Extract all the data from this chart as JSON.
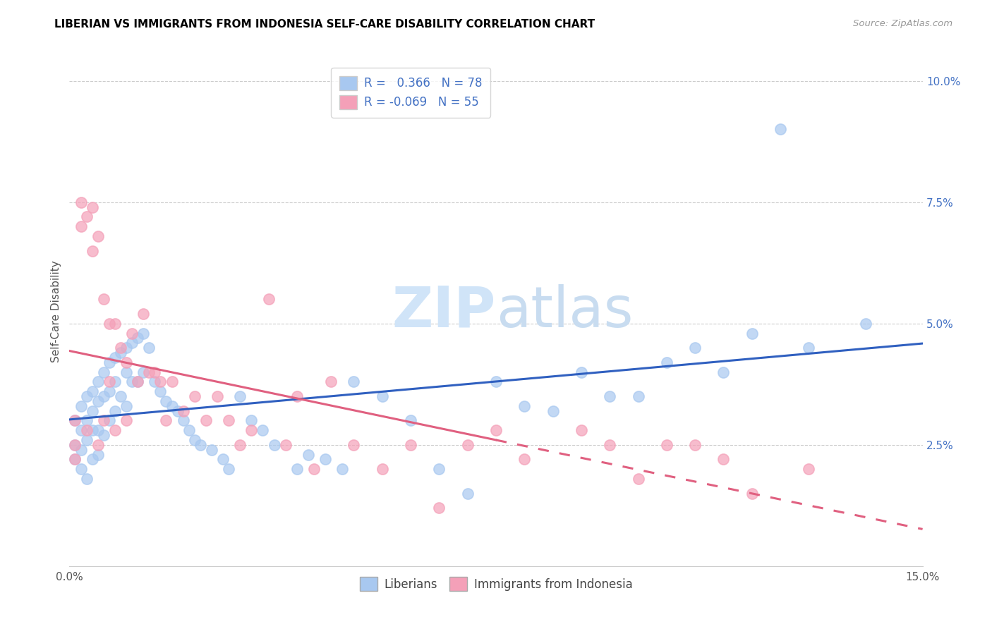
{
  "title": "LIBERIAN VS IMMIGRANTS FROM INDONESIA SELF-CARE DISABILITY CORRELATION CHART",
  "source": "Source: ZipAtlas.com",
  "ylabel": "Self-Care Disability",
  "xlim": [
    0.0,
    0.15
  ],
  "ylim": [
    0.0,
    0.105
  ],
  "R_liberian": 0.366,
  "N_liberian": 78,
  "R_indonesia": -0.069,
  "N_indonesia": 55,
  "blue_dot_color": "#A8C8F0",
  "pink_dot_color": "#F4A0B8",
  "blue_line_color": "#3060C0",
  "pink_line_color": "#E06080",
  "watermark_color": "#D0E4F8",
  "legend_r_color": "#4472C4",
  "liberian_x": [
    0.001,
    0.001,
    0.001,
    0.002,
    0.002,
    0.002,
    0.002,
    0.003,
    0.003,
    0.003,
    0.003,
    0.004,
    0.004,
    0.004,
    0.004,
    0.005,
    0.005,
    0.005,
    0.005,
    0.006,
    0.006,
    0.006,
    0.007,
    0.007,
    0.007,
    0.008,
    0.008,
    0.008,
    0.009,
    0.009,
    0.01,
    0.01,
    0.01,
    0.011,
    0.011,
    0.012,
    0.012,
    0.013,
    0.013,
    0.014,
    0.015,
    0.016,
    0.017,
    0.018,
    0.019,
    0.02,
    0.021,
    0.022,
    0.023,
    0.025,
    0.027,
    0.028,
    0.03,
    0.032,
    0.034,
    0.036,
    0.04,
    0.042,
    0.045,
    0.048,
    0.05,
    0.055,
    0.06,
    0.065,
    0.07,
    0.075,
    0.08,
    0.085,
    0.09,
    0.095,
    0.1,
    0.105,
    0.11,
    0.115,
    0.12,
    0.125,
    0.13,
    0.14
  ],
  "liberian_y": [
    0.03,
    0.025,
    0.022,
    0.033,
    0.028,
    0.024,
    0.02,
    0.035,
    0.03,
    0.026,
    0.018,
    0.036,
    0.032,
    0.028,
    0.022,
    0.038,
    0.034,
    0.028,
    0.023,
    0.04,
    0.035,
    0.027,
    0.042,
    0.036,
    0.03,
    0.043,
    0.038,
    0.032,
    0.044,
    0.035,
    0.045,
    0.04,
    0.033,
    0.046,
    0.038,
    0.047,
    0.038,
    0.048,
    0.04,
    0.045,
    0.038,
    0.036,
    0.034,
    0.033,
    0.032,
    0.03,
    0.028,
    0.026,
    0.025,
    0.024,
    0.022,
    0.02,
    0.035,
    0.03,
    0.028,
    0.025,
    0.02,
    0.023,
    0.022,
    0.02,
    0.038,
    0.035,
    0.03,
    0.02,
    0.015,
    0.038,
    0.033,
    0.032,
    0.04,
    0.035,
    0.035,
    0.042,
    0.045,
    0.04,
    0.048,
    0.09,
    0.045,
    0.05
  ],
  "indonesia_x": [
    0.001,
    0.001,
    0.001,
    0.002,
    0.002,
    0.003,
    0.003,
    0.004,
    0.004,
    0.005,
    0.005,
    0.006,
    0.006,
    0.007,
    0.007,
    0.008,
    0.008,
    0.009,
    0.01,
    0.01,
    0.011,
    0.012,
    0.013,
    0.014,
    0.015,
    0.016,
    0.017,
    0.018,
    0.02,
    0.022,
    0.024,
    0.026,
    0.028,
    0.03,
    0.032,
    0.035,
    0.038,
    0.04,
    0.043,
    0.046,
    0.05,
    0.055,
    0.06,
    0.065,
    0.07,
    0.075,
    0.08,
    0.09,
    0.095,
    0.1,
    0.105,
    0.11,
    0.115,
    0.12,
    0.13
  ],
  "indonesia_y": [
    0.03,
    0.025,
    0.022,
    0.075,
    0.07,
    0.072,
    0.028,
    0.074,
    0.065,
    0.068,
    0.025,
    0.055,
    0.03,
    0.05,
    0.038,
    0.05,
    0.028,
    0.045,
    0.042,
    0.03,
    0.048,
    0.038,
    0.052,
    0.04,
    0.04,
    0.038,
    0.03,
    0.038,
    0.032,
    0.035,
    0.03,
    0.035,
    0.03,
    0.025,
    0.028,
    0.055,
    0.025,
    0.035,
    0.02,
    0.038,
    0.025,
    0.02,
    0.025,
    0.012,
    0.025,
    0.028,
    0.022,
    0.028,
    0.025,
    0.018,
    0.025,
    0.025,
    0.022,
    0.015,
    0.02
  ]
}
